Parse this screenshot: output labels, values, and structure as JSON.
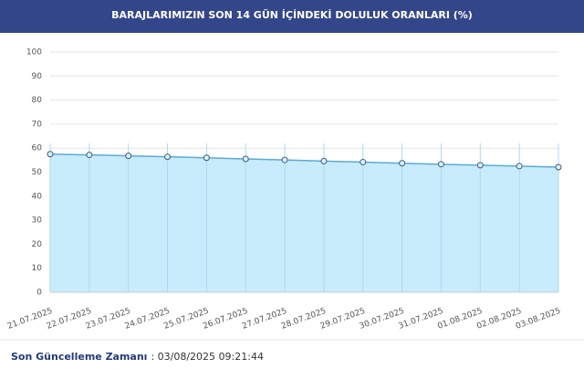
{
  "chart_data": {
    "type": "area",
    "title": "BARAJLARIMIZIN SON 14 GÜN İÇİNDEKİ DOLULUK ORANLARI (%)",
    "categories": [
      "21.07.2025",
      "22.07.2025",
      "23.07.2025",
      "24.07.2025",
      "25.07.2025",
      "26.07.2025",
      "27.07.2025",
      "28.07.2025",
      "29.07.2025",
      "30.07.2025",
      "31.07.2025",
      "01.08.2025",
      "02.08.2025",
      "03.08.2025"
    ],
    "values": [
      57.5,
      57.2,
      56.8,
      56.4,
      56.0,
      55.5,
      55.1,
      54.6,
      54.2,
      53.7,
      53.3,
      52.9,
      52.5,
      52.1
    ],
    "color": "#5aaad8",
    "fill": "#c8ecfb",
    "ylim": [
      0,
      100
    ],
    "yticks": [
      0,
      10,
      20,
      30,
      40,
      50,
      60,
      70,
      80,
      90,
      100
    ],
    "grid": true
  },
  "footer": {
    "label": "Son Güncelleme Zamanı",
    "value": ": 03/08/2025 09:21:44"
  }
}
